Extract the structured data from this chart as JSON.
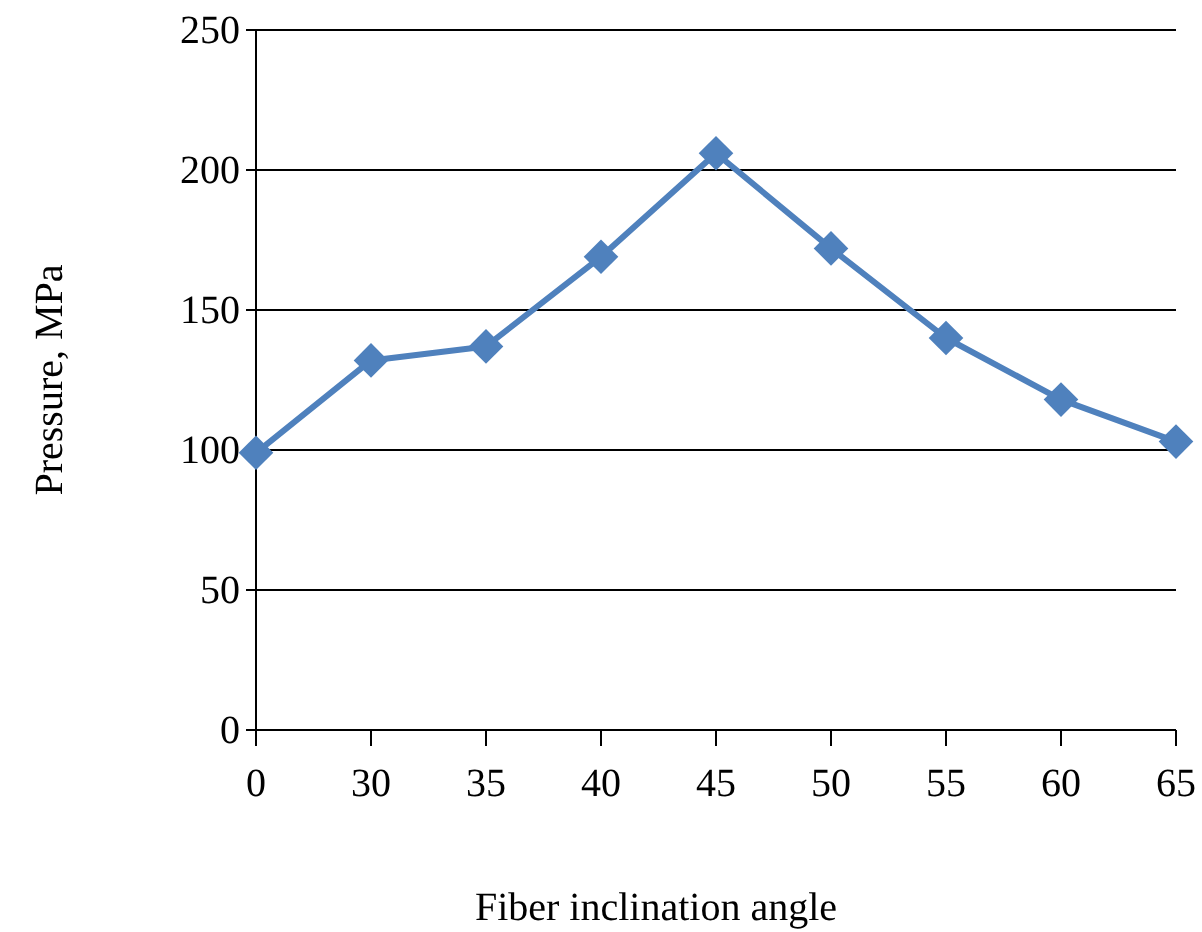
{
  "chart_data": {
    "type": "line",
    "xlabel": "Fiber inclination angle",
    "ylabel": "Pressure, MPa",
    "categories": [
      "0",
      "30",
      "35",
      "40",
      "45",
      "50",
      "55",
      "60",
      "65"
    ],
    "series": [
      {
        "color": "#4f81bd",
        "values": [
          99,
          132,
          137,
          169,
          206,
          172,
          140,
          118,
          103
        ]
      }
    ],
    "ylim": [
      0,
      250
    ],
    "yticks": [
      0,
      50,
      100,
      150,
      200,
      250
    ],
    "grid": "y",
    "marker": "diamond",
    "line_style": "solid"
  }
}
